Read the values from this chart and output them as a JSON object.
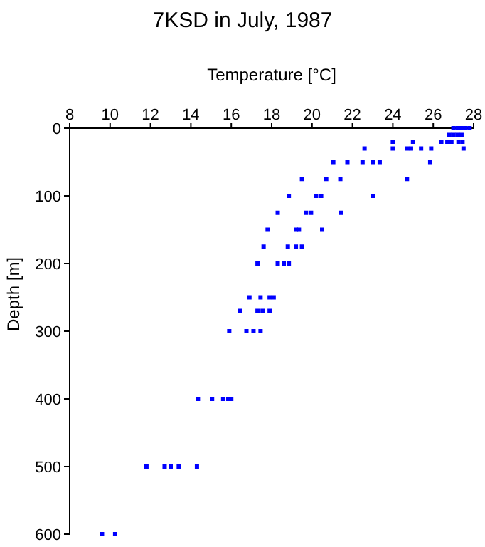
{
  "chart_data": {
    "type": "scatter",
    "title": "7KSD in July, 1987",
    "xlabel": "Temperature [°C]",
    "ylabel": "Depth [m]",
    "xlim": [
      8,
      28
    ],
    "xticks": [
      8,
      10,
      12,
      14,
      16,
      18,
      20,
      22,
      24,
      26,
      28
    ],
    "ylim": [
      600,
      0
    ],
    "yticks": [
      0,
      100,
      200,
      300,
      400,
      500,
      600
    ],
    "grid": false,
    "legend": false,
    "marker": "square",
    "series": [
      {
        "color": "#0000ff",
        "x": [
          27.0,
          27.2,
          27.4,
          27.6,
          27.8,
          26.8,
          27.0,
          27.2,
          27.4,
          24.0,
          25.0,
          26.4,
          26.7,
          26.9,
          27.25,
          27.45,
          22.6,
          24.0,
          24.7,
          24.9,
          25.4,
          25.9,
          27.5,
          21.05,
          21.75,
          22.5,
          23.0,
          23.35,
          25.85,
          19.5,
          20.7,
          21.4,
          24.7,
          18.85,
          20.2,
          20.45,
          23.0,
          18.3,
          19.7,
          19.95,
          21.45,
          17.8,
          19.2,
          19.35,
          20.5,
          17.6,
          18.8,
          19.2,
          19.5,
          17.3,
          18.3,
          18.6,
          18.85,
          16.9,
          17.45,
          17.9,
          18.1,
          16.45,
          17.3,
          17.55,
          17.9,
          15.9,
          16.75,
          17.1,
          17.45,
          14.35,
          15.05,
          15.6,
          15.85,
          16.0,
          11.8,
          12.7,
          13.0,
          13.4,
          14.3,
          9.6,
          10.25
        ],
        "values": [
          0,
          0,
          0,
          0,
          0,
          10,
          10,
          10,
          10,
          20,
          20,
          20,
          20,
          20,
          20,
          20,
          30,
          30,
          30,
          30,
          30,
          30,
          30,
          50,
          50,
          50,
          50,
          50,
          50,
          75,
          75,
          75,
          75,
          100,
          100,
          100,
          100,
          125,
          125,
          125,
          125,
          150,
          150,
          150,
          150,
          175,
          175,
          175,
          175,
          200,
          200,
          200,
          200,
          250,
          250,
          250,
          250,
          270,
          270,
          270,
          270,
          300,
          300,
          300,
          300,
          400,
          400,
          400,
          400,
          400,
          500,
          500,
          500,
          500,
          500,
          600,
          600
        ]
      }
    ]
  }
}
